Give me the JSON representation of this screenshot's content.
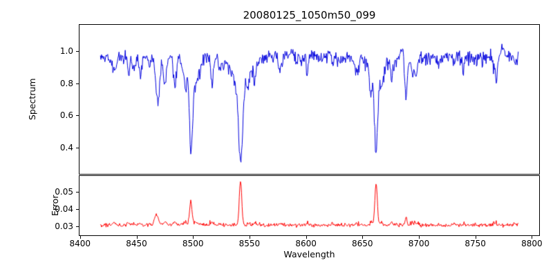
{
  "chart_data": {
    "type": "line",
    "title": "20080125_1050m50_099",
    "xlabel": "Wavelength",
    "xlim": [
      8399.5,
      8806.5
    ],
    "x": {
      "min": 8418,
      "max": 8788,
      "step": 0.5
    },
    "xticks": [
      8400,
      8450,
      8500,
      8550,
      8600,
      8650,
      8700,
      8750,
      8800
    ],
    "xtick_labels": [
      "8400",
      "8450",
      "8500",
      "8550",
      "8600",
      "8650",
      "8700",
      "8750",
      "8800"
    ],
    "grid": false,
    "legend": "none",
    "noise": {
      "seed": 20080125,
      "minor_features": 55
    },
    "panels": [
      {
        "name": "spectrum",
        "ylabel": "Spectrum",
        "color": "#0000dd",
        "ylim": [
          0.238,
          1.162
        ],
        "yticks": [
          0.4,
          0.6,
          0.8,
          1.0
        ],
        "ytick_labels": [
          "0.4",
          "0.6",
          "0.8",
          "1.0"
        ],
        "continuum": 0.965,
        "noise_sigma": 0.018,
        "absorption_lines": [
          {
            "center": 8498.0,
            "core_depth": 0.42,
            "core_sigma": 1.2,
            "wing_depth": 0.08,
            "wing_sigma": 3.5,
            "min_value": 0.47
          },
          {
            "center": 8542.1,
            "core_depth": 0.5,
            "core_sigma": 1.7,
            "wing_depth": 0.18,
            "wing_sigma": 8.0,
            "min_value": 0.28
          },
          {
            "center": 8662.1,
            "core_depth": 0.48,
            "core_sigma": 1.4,
            "wing_depth": 0.12,
            "wing_sigma": 6.0,
            "min_value": 0.36
          },
          {
            "center": 8688.6,
            "core_depth": 0.24,
            "core_sigma": 1.0,
            "wing_depth": 0.04,
            "wing_sigma": 2.5,
            "min_value": 0.69
          }
        ]
      },
      {
        "name": "error",
        "ylabel": "Error",
        "color": "#ff0000",
        "ylim": [
          0.0248,
          0.0592
        ],
        "yticks": [
          0.03,
          0.04,
          0.05
        ],
        "ytick_labels": [
          "0.03",
          "0.04",
          "0.05"
        ],
        "baseline": 0.0306,
        "noise_sigma": 0.0005,
        "spikes": [
          {
            "center": 8466.9,
            "height": 0.004,
            "sigma": 1.2,
            "peak_value": 0.035
          },
          {
            "center": 8498.0,
            "height": 0.0135,
            "sigma": 1.0,
            "peak_value": 0.044
          },
          {
            "center": 8542.1,
            "height": 0.0258,
            "sigma": 1.1,
            "peak_value": 0.056
          },
          {
            "center": 8662.1,
            "height": 0.0242,
            "sigma": 1.1,
            "peak_value": 0.055
          },
          {
            "center": 8688.6,
            "height": 0.0048,
            "sigma": 0.9,
            "peak_value": 0.035
          }
        ]
      }
    ]
  }
}
